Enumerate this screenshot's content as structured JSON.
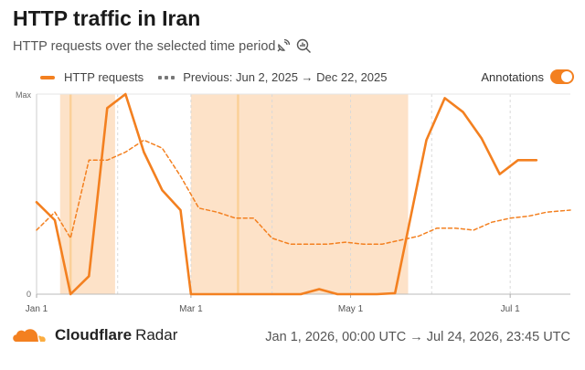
{
  "header": {
    "title": "HTTP traffic in Iran",
    "subtitle": "HTTP requests over the selected time period"
  },
  "legend": {
    "current": "HTTP requests",
    "previous": "Previous: Jun 2, 2025 → Dec 22, 2025"
  },
  "annotations_toggle": {
    "label": "Annotations",
    "on": true
  },
  "footer": {
    "brand": "Cloudflare",
    "product": "Radar",
    "date_range": "Jan 1, 2026, 00:00 UTC → Jul 24, 2026, 23:45 UTC"
  },
  "colors": {
    "accent": "#f38020",
    "shade": "#fde2c8",
    "shade_line": "#fbd098",
    "previous": "#888888",
    "grid": "#d9d9d9"
  },
  "icons": [
    "satellite-icon",
    "zoom-chart-icon",
    "cloudflare-logo-icon"
  ],
  "chart_data": {
    "type": "line",
    "title": "HTTP traffic in Iran",
    "xlabel": "",
    "ylabel": "",
    "x_domain": [
      "2026-01-01",
      "2026-07-24"
    ],
    "y_domain": [
      0,
      1
    ],
    "y_ticks": [
      {
        "value": 0,
        "label": "0"
      },
      {
        "value": 1,
        "label": "Max"
      }
    ],
    "x_ticks": [
      {
        "date": "2026-01-01",
        "label": "Jan 1"
      },
      {
        "date": "2026-03-01",
        "label": "Mar 1"
      },
      {
        "date": "2026-05-01",
        "label": "May 1"
      },
      {
        "date": "2026-07-01",
        "label": "Jul 1"
      }
    ],
    "grid": true,
    "shaded_ranges": [
      {
        "start": "2026-01-10",
        "end": "2026-01-31"
      },
      {
        "start": "2026-03-01",
        "end": "2026-05-23"
      }
    ],
    "annotation_lines": [
      "2026-01-14",
      "2026-03-19"
    ],
    "series": [
      {
        "name": "HTTP requests",
        "style": "solid",
        "points": [
          [
            "2026-01-01",
            0.46
          ],
          [
            "2026-01-08",
            0.37
          ],
          [
            "2026-01-14",
            0.0
          ],
          [
            "2026-01-21",
            0.09
          ],
          [
            "2026-01-28",
            0.93
          ],
          [
            "2026-02-04",
            1.0
          ],
          [
            "2026-02-11",
            0.71
          ],
          [
            "2026-02-18",
            0.52
          ],
          [
            "2026-02-25",
            0.42
          ],
          [
            "2026-03-01",
            0.0
          ],
          [
            "2026-03-15",
            0.0
          ],
          [
            "2026-04-01",
            0.0
          ],
          [
            "2026-04-12",
            0.0
          ],
          [
            "2026-04-19",
            0.025
          ],
          [
            "2026-04-26",
            0.0
          ],
          [
            "2026-05-04",
            0.0
          ],
          [
            "2026-05-11",
            0.0
          ],
          [
            "2026-05-18",
            0.005
          ],
          [
            "2026-05-30",
            0.77
          ],
          [
            "2026-06-06",
            0.98
          ],
          [
            "2026-06-13",
            0.91
          ],
          [
            "2026-06-20",
            0.78
          ],
          [
            "2026-06-27",
            0.6
          ],
          [
            "2026-07-04",
            0.67
          ],
          [
            "2026-07-11",
            0.67
          ]
        ]
      },
      {
        "name": "Previous: Jun 2, 2025 → Dec 22, 2025",
        "style": "dashed",
        "points": [
          [
            "2026-01-01",
            0.32
          ],
          [
            "2026-01-08",
            0.41
          ],
          [
            "2026-01-14",
            0.28
          ],
          [
            "2026-01-21",
            0.67
          ],
          [
            "2026-01-28",
            0.67
          ],
          [
            "2026-02-04",
            0.71
          ],
          [
            "2026-02-11",
            0.77
          ],
          [
            "2026-02-18",
            0.73
          ],
          [
            "2026-02-25",
            0.59
          ],
          [
            "2026-03-04",
            0.43
          ],
          [
            "2026-03-11",
            0.41
          ],
          [
            "2026-03-18",
            0.38
          ],
          [
            "2026-03-25",
            0.38
          ],
          [
            "2026-04-01",
            0.28
          ],
          [
            "2026-04-08",
            0.25
          ],
          [
            "2026-04-15",
            0.25
          ],
          [
            "2026-04-22",
            0.25
          ],
          [
            "2026-04-29",
            0.26
          ],
          [
            "2026-05-06",
            0.25
          ],
          [
            "2026-05-13",
            0.25
          ],
          [
            "2026-05-20",
            0.27
          ],
          [
            "2026-05-27",
            0.29
          ],
          [
            "2026-06-03",
            0.33
          ],
          [
            "2026-06-10",
            0.33
          ],
          [
            "2026-06-17",
            0.32
          ],
          [
            "2026-06-24",
            0.36
          ],
          [
            "2026-07-01",
            0.38
          ],
          [
            "2026-07-08",
            0.39
          ],
          [
            "2026-07-15",
            0.41
          ],
          [
            "2026-07-24",
            0.42
          ]
        ]
      }
    ]
  }
}
